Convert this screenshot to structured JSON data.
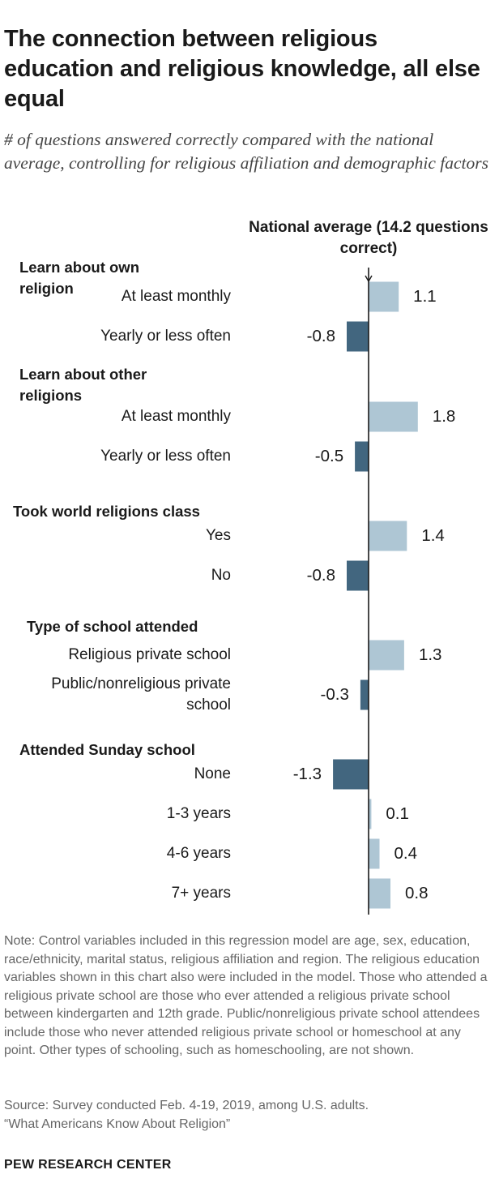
{
  "title": "The connection between religious education and religious knowledge, all else equal",
  "subtitle": "# of questions answered correctly compared with the national average, controlling for religious affiliation and demographic factors",
  "footer": "PEW RESEARCH CENTER",
  "note": "Note: Control variables included in this regression model are age, sex, education, race/ethnicity, marital status, religious affiliation and region. The religious education variables shown in this chart also were included in the model. Those who attended a religious private school are those who ever attended a religious private school between kindergarten and 12th grade. Public/nonreligious private school attendees include those who never attended religious private school or homeschool at any point. Other types of schooling, such as homeschooling, are not shown.",
  "source": "Source: Survey conducted Feb. 4-19, 2019, among U.S. adults.",
  "report": "“What Americans Know About Religion”",
  "colors": {
    "positive": "#aec6d4",
    "negative": "#42667f",
    "axis": "#1a1a1a"
  },
  "chart_data": {
    "type": "bar",
    "orientation": "horizontal",
    "reference_line": {
      "value": 0,
      "label": "National average (14.2 questions correct)"
    },
    "xlim": [
      -1.3,
      1.8
    ],
    "groups": [
      {
        "label": "Learn about own religion",
        "items": [
          {
            "label": "At least monthly",
            "value": 1.1,
            "value_label": "1.1"
          },
          {
            "label": "Yearly or less often",
            "value": -0.8,
            "value_label": "-0.8"
          }
        ]
      },
      {
        "label": "Learn about other religions",
        "items": [
          {
            "label": "At least monthly",
            "value": 1.8,
            "value_label": "1.8"
          },
          {
            "label": "Yearly or less often",
            "value": -0.5,
            "value_label": "-0.5"
          }
        ]
      },
      {
        "label": "Took world religions class",
        "items": [
          {
            "label": "Yes",
            "value": 1.4,
            "value_label": "1.4"
          },
          {
            "label": "No",
            "value": -0.8,
            "value_label": "-0.8"
          }
        ]
      },
      {
        "label": "Type of school attended",
        "items": [
          {
            "label": "Religious private school",
            "value": 1.3,
            "value_label": "1.3"
          },
          {
            "label": "Public/nonreligious private school",
            "value": -0.3,
            "value_label": "-0.3"
          }
        ]
      },
      {
        "label": "Attended Sunday school",
        "items": [
          {
            "label": "None",
            "value": -1.3,
            "value_label": "-1.3"
          },
          {
            "label": "1-3 years",
            "value": 0.1,
            "value_label": "0.1"
          },
          {
            "label": "4-6 years",
            "value": 0.4,
            "value_label": "0.4"
          },
          {
            "label": "7+ years",
            "value": 0.8,
            "value_label": "0.8"
          }
        ]
      }
    ]
  }
}
